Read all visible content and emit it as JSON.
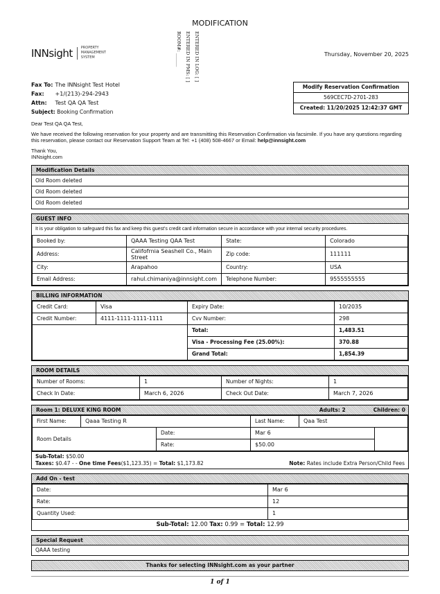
{
  "title": "MODIFICATION",
  "logo": {
    "brand": "INNsight",
    "sub1": "PROPERTY",
    "sub2": "MANAGEMENT",
    "sub3": "SYSTEM"
  },
  "vertical": {
    "room": "ROOM#: ______",
    "pms": "ENTERED IN PMS: [ ]",
    "log": "ENTERED IN LOG: [ ]"
  },
  "date": "Thursday, November 20, 2025",
  "fax": {
    "to_label": "Fax To:",
    "to": "The INNsight Test Hotel",
    "fax_label": "Fax:",
    "fax": "+1/(213)-294-2943",
    "attn_label": "Attn:",
    "attn": "Test QA QA Test",
    "subject_label": "Subject:",
    "subject": "Booking Confirmation"
  },
  "confirmation": {
    "title": "Modify Reservation Confirmation",
    "number": "569CEC7D-2701-283",
    "created": "Created: 11/20/2025 12:42:37 GMT"
  },
  "letter": {
    "greeting": "Dear Test QA QA Test,",
    "body": "We have received the following reservation for your property and are transmitting this Reservation Confirmation via facsimile. If you have any questions regarding this reservation, please contact our Reservation Support Team at Tel: +1 (408) 508-4667 or Email: ",
    "email": "help@innsight.com",
    "thanks": "Thank You,",
    "sign": "INNsight.com"
  },
  "modification": {
    "title": "Modification Details",
    "rows": [
      "Old Room deleted",
      "Old Room deleted",
      "Old Room deleted"
    ]
  },
  "guest": {
    "title": "GUEST INFO",
    "notice": "It is your obligation to safeguard this fax and keep this guest's credit card information secure in accordance with your internal security procedures.",
    "rows": [
      [
        "Booked by:",
        "QAAA Testing QAA Test",
        "State:",
        "Colorado"
      ],
      [
        "Address:",
        "Califofrnia Seashell Co., Main Street",
        "Zip code:",
        "111111"
      ],
      [
        "City:",
        "Arapahoo",
        "Country:",
        "USA"
      ],
      [
        "Email Address:",
        "rahul.chimaniya@innsight.com",
        "Telephone Number:",
        "9555555555"
      ]
    ]
  },
  "billing": {
    "title": "BILLING INFORMATION",
    "card_label": "Credit Card:",
    "card": "Visa",
    "expiry_label": "Expiry Date:",
    "expiry": "10/2035",
    "number_label": "Credit Number:",
    "number": "4111-1111-1111-1111",
    "cvv_label": "Cvv Number:",
    "cvv": "298",
    "total_label": "Total:",
    "total": "1,483.51",
    "fee_label": "Visa - Processing Fee (25.00%):",
    "fee": "370.88",
    "grand_label": "Grand Total:",
    "grand": "1,854.39"
  },
  "room_details": {
    "title": "ROOM DETAILS",
    "rooms_label": "Number of Rooms:",
    "rooms": "1",
    "nights_label": "Number of Nights:",
    "nights": "1",
    "checkin_label": "Check In Date:",
    "checkin": "March 6, 2026",
    "checkout_label": "Check Out Date:",
    "checkout": "March 7, 2026"
  },
  "room1": {
    "title": "Room 1: DELUXE KING ROOM",
    "adults": "Adults: 2",
    "children": "Children: 0",
    "first_label": "First Name:",
    "first": "Qaaa Testing R",
    "last_label": "Last Name:",
    "last": "Qaa Test",
    "details_label": "Room Details",
    "date_label": "Date:",
    "date": "Mar 6",
    "rate_label": "Rate:",
    "rate": "$50.00",
    "subtotal_label": "Sub-Total:",
    "subtotal": "$50.00",
    "taxes_label": "Taxes:",
    "taxes": "$0.47 - -",
    "fees_label": "One time Fees",
    "fees": "($1,123.35) =",
    "total_label": "Total:",
    "total": "$1,173.82",
    "note_label": "Note:",
    "note": "Rates include Extra Person/Child Fees"
  },
  "addon": {
    "title": "Add On - test",
    "date_label": "Date:",
    "date": "Mar 6",
    "rate_label": "Rate:",
    "rate": "12",
    "qty_label": "Quantity Used:",
    "qty": "1",
    "subtotal_label": "Sub-Total:",
    "subtotal": "12.00",
    "tax_label": "Tax:",
    "tax": "0.99 =",
    "total_label": "Total:",
    "total": "12.99"
  },
  "special": {
    "title": "Special Request",
    "text": "QAAA testing"
  },
  "footer": {
    "thanks": "Thanks for selecting INNsight.com as your partner",
    "page": "1 of 1"
  }
}
